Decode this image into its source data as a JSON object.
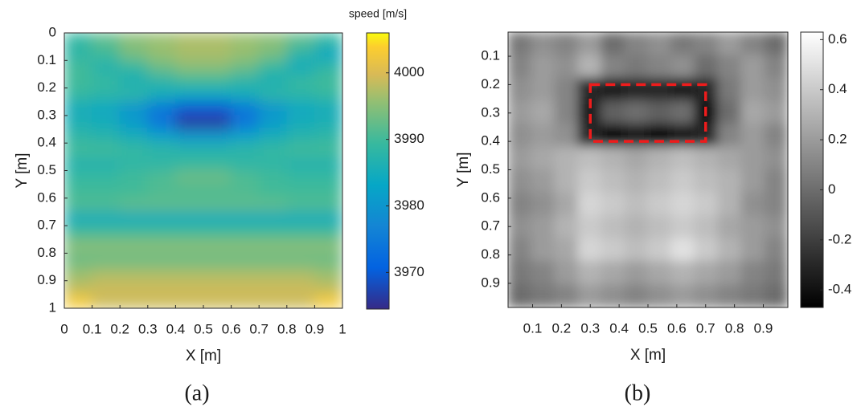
{
  "chart_data": [
    {
      "type": "heatmap",
      "caption": "(a)",
      "xlabel": "X [m]",
      "ylabel": "Y [m]",
      "colorbar_label": "speed [m/s]",
      "colormap": "parula",
      "xlim": [
        0,
        1
      ],
      "xticks": [
        0,
        0.1,
        0.2,
        0.3,
        0.4,
        0.5,
        0.6,
        0.7,
        0.8,
        0.9,
        1
      ],
      "ylim": [
        0,
        1
      ],
      "yticks": [
        0,
        0.1,
        0.2,
        0.3,
        0.4,
        0.5,
        0.6,
        0.7,
        0.8,
        0.9,
        1
      ],
      "clim": [
        3964.5,
        4006
      ],
      "cticks": [
        3970,
        3980,
        3990,
        4000
      ],
      "z": [
        [
          3989,
          3992,
          3995,
          3996,
          3997,
          3997,
          3996,
          3995,
          3992,
          3989
        ],
        [
          3988,
          3990,
          3994,
          3996,
          3997,
          3997,
          3996,
          3994,
          3988,
          3984
        ],
        [
          3990,
          3987,
          3989,
          3993,
          3995,
          3995,
          3993,
          3989,
          3985,
          3988
        ],
        [
          3990,
          3989,
          3986,
          3988,
          3990,
          3990,
          3988,
          3986,
          3989,
          3990
        ],
        [
          3989,
          3988,
          3988,
          3985,
          3984,
          3984,
          3985,
          3988,
          3988,
          3989
        ],
        [
          3985,
          3984,
          3980,
          3975,
          3970,
          3970,
          3975,
          3980,
          3984,
          3985
        ],
        [
          3986,
          3985,
          3981,
          3974,
          3966,
          3966,
          3974,
          3981,
          3985,
          3986
        ],
        [
          3988,
          3987,
          3985,
          3982,
          3980,
          3980,
          3982,
          3985,
          3987,
          3988
        ],
        [
          3990,
          3990,
          3989,
          3988,
          3987,
          3987,
          3988,
          3989,
          3990,
          3990
        ],
        [
          3987,
          3987,
          3988,
          3988,
          3989,
          3989,
          3988,
          3988,
          3987,
          3987
        ],
        [
          3989,
          3989,
          3990,
          3991,
          3993,
          3993,
          3991,
          3990,
          3989,
          3989
        ],
        [
          3990,
          3990,
          3990,
          3991,
          3991,
          3991,
          3991,
          3990,
          3990,
          3990
        ],
        [
          3991,
          3991,
          3992,
          3992,
          3992,
          3992,
          3992,
          3992,
          3991,
          3991
        ],
        [
          3985,
          3985,
          3985,
          3985,
          3985,
          3985,
          3985,
          3985,
          3985,
          3985
        ],
        [
          3990,
          3990,
          3990,
          3990,
          3990,
          3990,
          3990,
          3990,
          3990,
          3990
        ],
        [
          3995,
          3995,
          3995,
          3995,
          3995,
          3995,
          3995,
          3995,
          3995,
          3995
        ],
        [
          3993,
          3993,
          3993,
          3993,
          3993,
          3993,
          3993,
          3993,
          3993,
          3993
        ],
        [
          3996,
          3997,
          3997,
          3997,
          3997,
          3997,
          3997,
          3997,
          3997,
          3996
        ],
        [
          3998,
          3999,
          3999,
          3999,
          3999,
          3999,
          3999,
          3999,
          3999,
          3998
        ],
        [
          4003,
          3999,
          3999,
          3999,
          3999,
          3999,
          3999,
          3999,
          3999,
          4003
        ]
      ]
    },
    {
      "type": "heatmap",
      "caption": "(b)",
      "xlabel": "X [m]",
      "ylabel": "Y [m]",
      "colormap": "gray",
      "xlim": [
        0.015,
        0.985
      ],
      "xticks": [
        0.1,
        0.2,
        0.3,
        0.4,
        0.5,
        0.6,
        0.7,
        0.8,
        0.9
      ],
      "ylim": [
        0.015,
        0.985
      ],
      "yticks": [
        0.1,
        0.2,
        0.3,
        0.4,
        0.5,
        0.6,
        0.7,
        0.8,
        0.9
      ],
      "clim": [
        -0.47,
        0.63
      ],
      "cticks": [
        -0.4,
        -0.2,
        0,
        0.2,
        0.4,
        0.6
      ],
      "box": {
        "x0": 0.3,
        "x1": 0.7,
        "y0": 0.2,
        "y1": 0.4,
        "color": "#ee1c1c"
      },
      "z": [
        [
          0.05,
          0.15,
          0.1,
          0.2,
          0.0,
          0.1,
          0.15,
          0.05,
          0.1,
          0.2,
          0.1,
          0.0
        ],
        [
          0.1,
          0.2,
          0.15,
          0.3,
          0.1,
          0.05,
          0.1,
          0.15,
          0.0,
          0.1,
          0.2,
          0.1
        ],
        [
          0.15,
          0.2,
          0.1,
          -0.3,
          -0.35,
          -0.3,
          -0.3,
          -0.35,
          -0.3,
          0.05,
          0.2,
          0.15
        ],
        [
          0.2,
          0.25,
          0.1,
          -0.35,
          -0.05,
          0.0,
          -0.05,
          0.0,
          -0.4,
          0.0,
          0.25,
          0.2
        ],
        [
          0.15,
          0.2,
          0.15,
          -0.3,
          -0.4,
          -0.35,
          -0.4,
          -0.35,
          -0.3,
          0.1,
          0.2,
          0.1
        ],
        [
          0.2,
          0.25,
          0.3,
          0.35,
          0.3,
          0.25,
          0.3,
          0.35,
          0.3,
          0.25,
          0.2,
          0.15
        ],
        [
          0.15,
          0.2,
          0.3,
          0.4,
          0.35,
          0.3,
          0.35,
          0.4,
          0.35,
          0.3,
          0.2,
          0.1
        ],
        [
          0.1,
          0.15,
          0.25,
          0.45,
          0.4,
          0.35,
          0.4,
          0.45,
          0.4,
          0.3,
          0.15,
          0.1
        ],
        [
          0.15,
          0.2,
          0.3,
          0.4,
          0.35,
          0.3,
          0.35,
          0.4,
          0.35,
          0.25,
          0.2,
          0.15
        ],
        [
          0.1,
          0.2,
          0.25,
          0.45,
          0.4,
          0.35,
          0.4,
          0.5,
          0.4,
          0.3,
          0.2,
          0.1
        ],
        [
          0.05,
          0.1,
          0.2,
          0.3,
          0.25,
          0.2,
          0.25,
          0.3,
          0.25,
          0.2,
          0.1,
          0.05
        ],
        [
          0.0,
          0.05,
          0.1,
          0.2,
          0.15,
          0.1,
          0.15,
          0.2,
          0.15,
          0.1,
          0.05,
          0.0
        ]
      ]
    }
  ]
}
